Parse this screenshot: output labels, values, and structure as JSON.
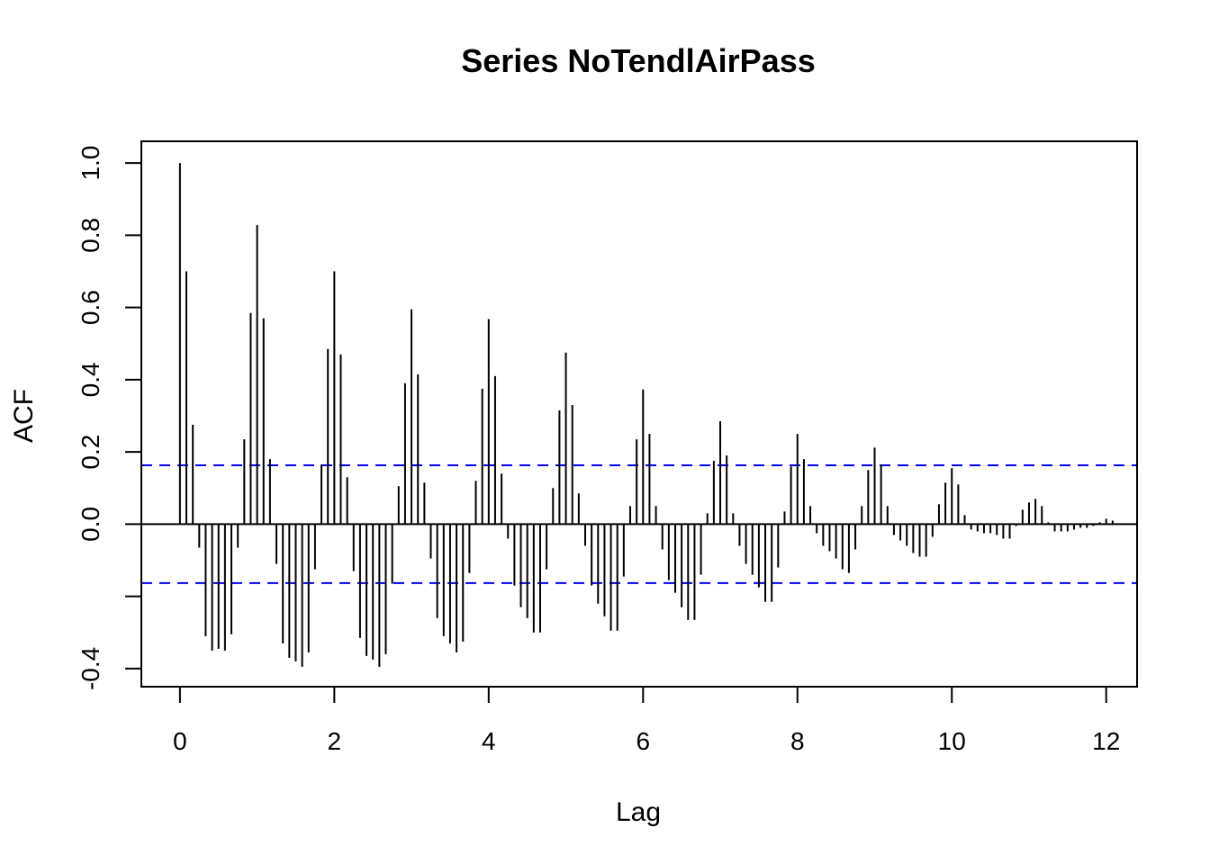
{
  "chart_data": {
    "type": "bar",
    "title": "Series  NoTendlAirPass",
    "xlabel": "Lag",
    "ylabel": "ACF",
    "xlim": [
      -0.5,
      12.4
    ],
    "ylim": [
      -0.45,
      1.06
    ],
    "x_ticks": [
      0,
      2,
      4,
      6,
      8,
      10,
      12
    ],
    "y_ticks": [
      -0.4,
      -0.2,
      0.0,
      0.2,
      0.4,
      0.6,
      0.8,
      1.0
    ],
    "y_tick_labels": [
      "-0.4",
      "",
      "0.0",
      "0.2",
      "0.4",
      "0.6",
      "0.8",
      "1.0"
    ],
    "lag_step": 0.08333333,
    "confidence_bound": 0.163,
    "bound_color": "#0000ee",
    "bar_color": "#000000",
    "grid": false,
    "values": [
      1.0,
      0.7,
      0.275,
      -0.065,
      -0.31,
      -0.35,
      -0.345,
      -0.35,
      -0.305,
      -0.065,
      0.235,
      0.585,
      0.828,
      0.57,
      0.18,
      -0.11,
      -0.33,
      -0.37,
      -0.38,
      -0.395,
      -0.355,
      -0.125,
      0.165,
      0.485,
      0.7,
      0.47,
      0.13,
      -0.13,
      -0.315,
      -0.365,
      -0.375,
      -0.395,
      -0.36,
      -0.165,
      0.105,
      0.39,
      0.595,
      0.415,
      0.115,
      -0.095,
      -0.26,
      -0.31,
      -0.33,
      -0.355,
      -0.325,
      -0.135,
      0.12,
      0.375,
      0.568,
      0.41,
      0.14,
      -0.04,
      -0.17,
      -0.23,
      -0.26,
      -0.3,
      -0.3,
      -0.125,
      0.1,
      0.315,
      0.475,
      0.33,
      0.085,
      -0.06,
      -0.17,
      -0.22,
      -0.255,
      -0.295,
      -0.295,
      -0.145,
      0.05,
      0.235,
      0.373,
      0.25,
      0.05,
      -0.07,
      -0.155,
      -0.19,
      -0.23,
      -0.265,
      -0.265,
      -0.14,
      0.03,
      0.175,
      0.285,
      0.19,
      0.03,
      -0.06,
      -0.11,
      -0.14,
      -0.175,
      -0.215,
      -0.215,
      -0.12,
      0.035,
      0.16,
      0.25,
      0.18,
      0.05,
      -0.025,
      -0.06,
      -0.075,
      -0.095,
      -0.125,
      -0.135,
      -0.07,
      0.05,
      0.15,
      0.212,
      0.165,
      0.05,
      -0.03,
      -0.045,
      -0.06,
      -0.08,
      -0.09,
      -0.09,
      -0.035,
      0.055,
      0.115,
      0.155,
      0.11,
      0.025,
      -0.015,
      -0.02,
      -0.025,
      -0.025,
      -0.03,
      -0.04,
      -0.04,
      -0.005,
      0.04,
      0.06,
      0.07,
      0.05,
      0.005,
      -0.02,
      -0.02,
      -0.02,
      -0.015,
      -0.01,
      -0.01,
      -0.005,
      0.005,
      0.015,
      0.01
    ]
  }
}
